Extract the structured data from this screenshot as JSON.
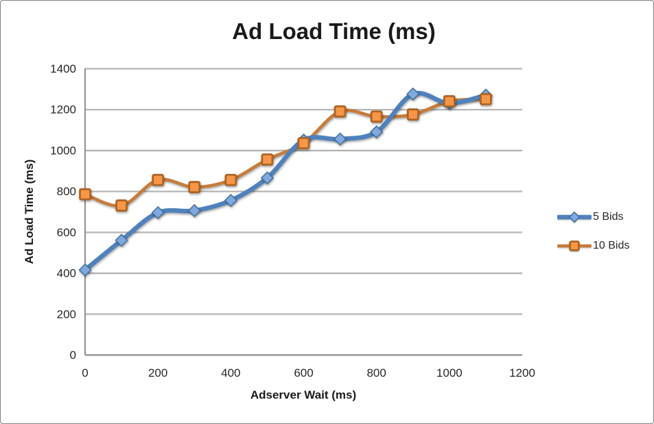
{
  "chart_data": {
    "type": "line",
    "title": "Ad Load Time (ms)",
    "xlabel": "Adserver Wait (ms)",
    "ylabel": "Ad Load Time (ms)",
    "x": [
      0,
      100,
      200,
      300,
      400,
      500,
      600,
      700,
      800,
      900,
      1000,
      1100
    ],
    "series": [
      {
        "name": "5 Bids",
        "marker": "diamond",
        "line_color": "#4F81BD",
        "line_width": 6.5,
        "marker_fill": "#7FA9DF",
        "marker_fill_light": "#A9C7EC",
        "marker_stroke": "#44739F",
        "values": [
          415,
          560,
          695,
          705,
          755,
          865,
          1050,
          1055,
          1090,
          1275,
          1230,
          1270
        ]
      },
      {
        "name": "10 Bids",
        "marker": "square",
        "line_color": "#C87B38",
        "line_width": 4.6,
        "marker_fill": "#F79646",
        "marker_fill_light": "#FBB169",
        "marker_stroke": "#AD6424",
        "values": [
          785,
          730,
          855,
          820,
          855,
          955,
          1035,
          1190,
          1165,
          1175,
          1240,
          1250
        ]
      }
    ],
    "xlim": [
      0,
      1200
    ],
    "ylim": [
      0,
      1400
    ],
    "x_ticks": [
      0,
      200,
      400,
      600,
      800,
      1000,
      1200
    ],
    "y_ticks": [
      0,
      200,
      400,
      600,
      800,
      1000,
      1200,
      1400
    ],
    "grid": true,
    "smooth": true,
    "legend_position": "right"
  },
  "colors": {
    "background": "#FFFFFF",
    "border": "#7F7F7F",
    "gridline": "#A3A3A3",
    "axis": "#8C8C8C",
    "tick_text": "#262626",
    "title_text": "#1A1A1A"
  }
}
